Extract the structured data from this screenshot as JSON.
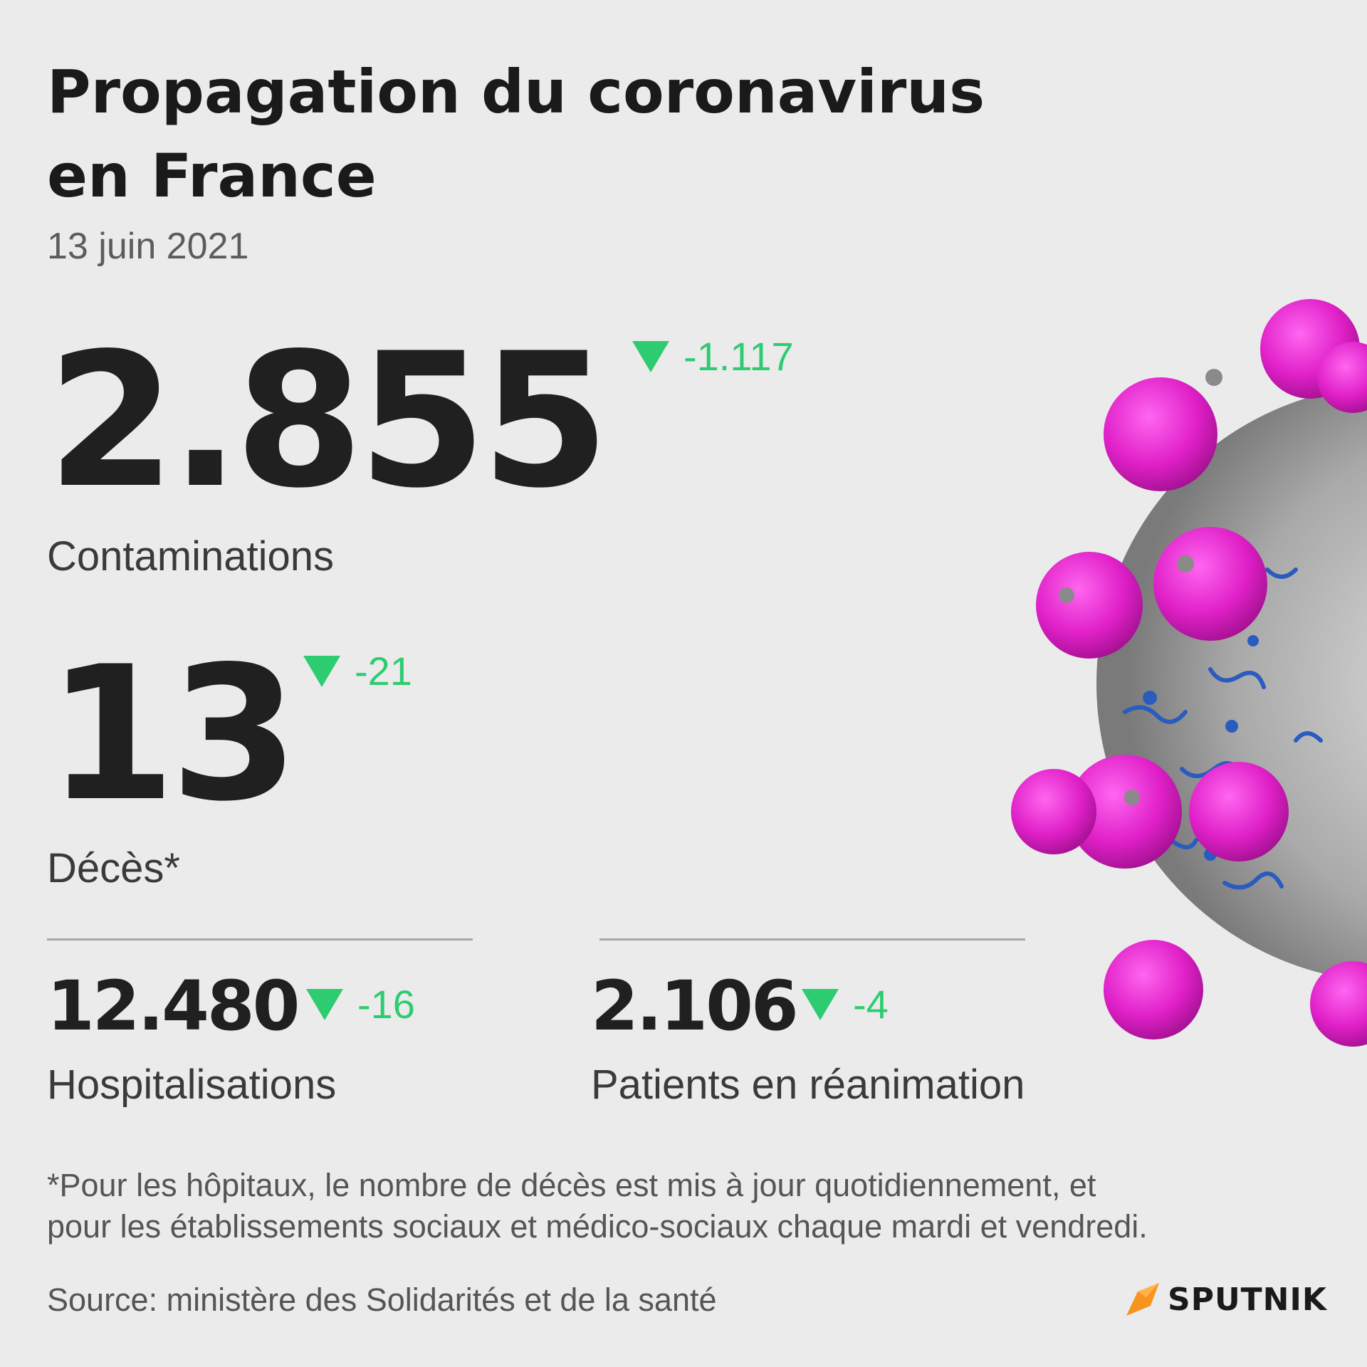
{
  "header": {
    "title_line1": "Propagation du coronavirus",
    "title_line2": "en France",
    "date": "13 juin 2021"
  },
  "stats": {
    "contaminations": {
      "value": "2.855",
      "delta": "-1.117",
      "label": "Contaminations"
    },
    "deces": {
      "value": "13",
      "delta": "-21",
      "label": "Décès*"
    },
    "hospitalisations": {
      "value": "12.480",
      "delta": "-16",
      "label": "Hospitalisations"
    },
    "reanimation": {
      "value": "2.106",
      "delta": "-4",
      "label": "Patients en réanimation"
    }
  },
  "footnote": {
    "line1": "*Pour les hôpitaux, le nombre de décès est mis à jour quotidiennement, et",
    "line2": "pour les établissements sociaux et médico-sociaux chaque mardi et vendredi."
  },
  "source": "Source: ministère des Solidarités et de la santé",
  "brand": {
    "name": "SPUTNIK"
  },
  "colors": {
    "background": "#ebebeb",
    "delta_down": "#2ecc71",
    "virus_spike": "#e020c8",
    "virus_body": "#b8b8b8",
    "virus_accent": "#2a5bbf",
    "logo_accent": "#f7941d"
  },
  "icons": {
    "delta_indicator": "down-triangle-icon",
    "illustration": "coronavirus-illustration",
    "logo": "sputnik-logo"
  }
}
